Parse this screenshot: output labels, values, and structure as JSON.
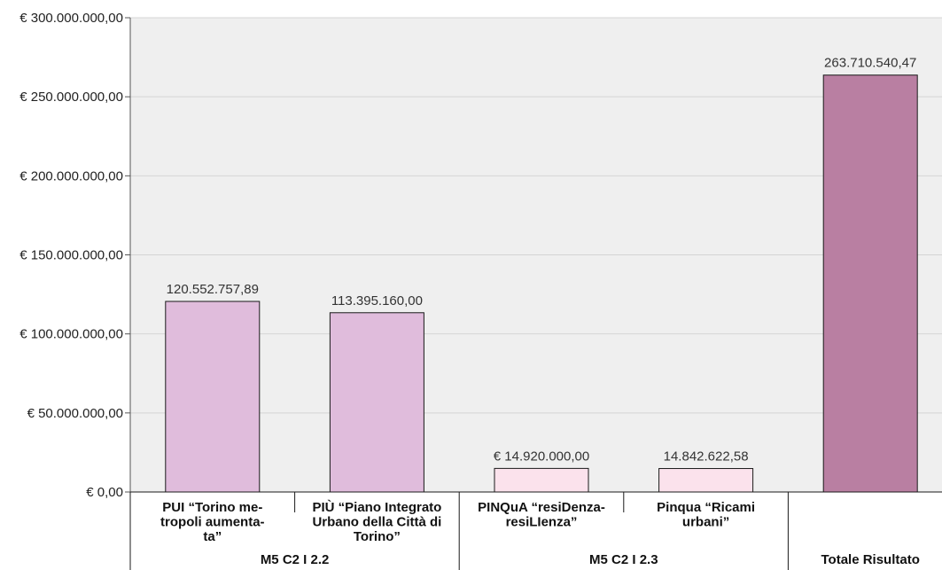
{
  "chart_data": {
    "type": "bar",
    "title": "",
    "xlabel": "",
    "ylabel": "",
    "ylim": [
      0,
      300000000
    ],
    "yticks": [
      {
        "value": 0,
        "label": "€ 0,00"
      },
      {
        "value": 50000000,
        "label": "€ 50.000.000,00"
      },
      {
        "value": 100000000,
        "label": "€ 100.000.000,00"
      },
      {
        "value": 150000000,
        "label": "€ 150.000.000,00"
      },
      {
        "value": 200000000,
        "label": "€ 200.000.000,00"
      },
      {
        "value": 250000000,
        "label": "€ 250.000.000,00"
      },
      {
        "value": 300000000,
        "label": "€ 300.000.000,00"
      }
    ],
    "grid": true,
    "bars": [
      {
        "category": [
          "PUI “Torino me-",
          "tropoli aumenta-",
          "ta”"
        ],
        "value": 120552757.89,
        "label": "120.552.757,89",
        "color": "#e0bcdc"
      },
      {
        "category": [
          "PIÙ “Piano Integrato",
          "Urbano della Città di",
          "Torino”"
        ],
        "value": 113395160.0,
        "label": "113.395.160,00",
        "color": "#e0bcdc"
      },
      {
        "category": [
          "PINQuA “resiDenza-",
          "resiLIenza”"
        ],
        "value": 14920000.0,
        "label": "€ 14.920.000,00",
        "color": "#fbe2ec"
      },
      {
        "category": [
          "Pinqua “Ricami",
          "urbani”"
        ],
        "value": 14842622.58,
        "label": "14.842.622,58",
        "color": "#fbe2ec"
      },
      {
        "category": [],
        "value": 263710540.47,
        "label": "263.710.540,47",
        "color": "#b97fa2"
      }
    ],
    "groups": [
      {
        "label": "M5 C2 I 2.2",
        "start": 0,
        "end": 1
      },
      {
        "label": "M5 C2 I 2.3",
        "start": 2,
        "end": 3
      },
      {
        "label": "Totale Risultato",
        "start": 4,
        "end": 4
      }
    ]
  }
}
